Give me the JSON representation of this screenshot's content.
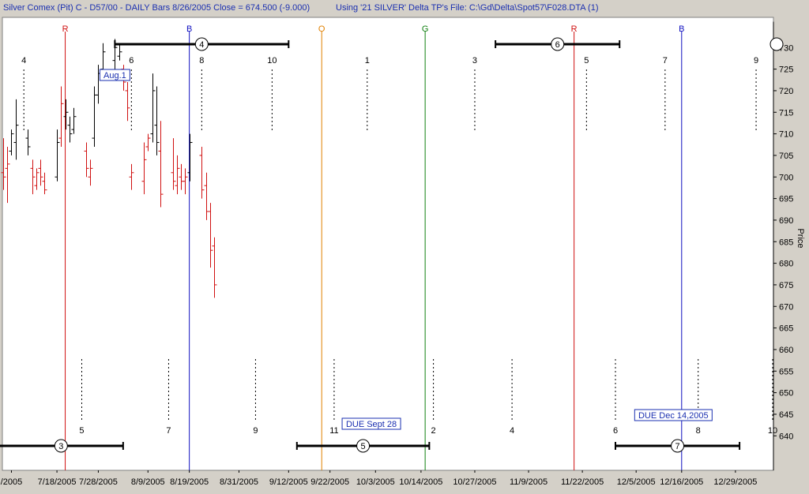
{
  "header": {
    "title": "Silver Comex (Pit) C - D57/00  - DAILY Bars  8/26/2005 Close = 674.500 (-9.000)",
    "using": "Using '21 SILVER' Delta TP's",
    "file": "File: C:\\Gd\\Delta\\Spot57\\F028.DTA (1)"
  },
  "chart_data": {
    "type": "bar",
    "subtype": "OHLC daily bars with cycle markers",
    "ylabel": "Price",
    "ylim": [
      632,
      737
    ],
    "yticks": [
      640,
      645,
      650,
      655,
      660,
      665,
      670,
      675,
      680,
      685,
      690,
      695,
      700,
      705,
      710,
      715,
      720,
      725,
      730
    ],
    "x_date_range": [
      "2005-07-05",
      "2006-01-07"
    ],
    "xticks": [
      {
        "date": "2005-07-07",
        "label": "/2005"
      },
      {
        "date": "2005-07-18",
        "label": "7/18/2005"
      },
      {
        "date": "2005-07-28",
        "label": "7/28/2005"
      },
      {
        "date": "2005-08-09",
        "label": "8/9/2005"
      },
      {
        "date": "2005-08-19",
        "label": "8/19/2005"
      },
      {
        "date": "2005-08-31",
        "label": "8/31/2005"
      },
      {
        "date": "2005-09-12",
        "label": "9/12/2005"
      },
      {
        "date": "2005-09-22",
        "label": "9/22/2005"
      },
      {
        "date": "2005-10-03",
        "label": "10/3/2005"
      },
      {
        "date": "2005-10-14",
        "label": "10/14/2005"
      },
      {
        "date": "2005-10-27",
        "label": "10/27/2005"
      },
      {
        "date": "2005-11-09",
        "label": "11/9/2005"
      },
      {
        "date": "2005-11-22",
        "label": "11/22/2005"
      },
      {
        "date": "2005-12-05",
        "label": "12/5/2005"
      },
      {
        "date": "2005-12-16",
        "label": "12/16/2005"
      },
      {
        "date": "2005-12-29",
        "label": "12/29/2005"
      }
    ],
    "colors": {
      "up": "#000000",
      "down": "#d01010",
      "R": "#d01010",
      "B": "#1010c0",
      "O": "#e08000",
      "G": "#108010",
      "label_box": "#1a2fb0"
    },
    "bars": [
      {
        "date": "2005-07-05",
        "h": 709,
        "l": 697,
        "o": 701,
        "c": 700,
        "color": "down"
      },
      {
        "date": "2005-07-06",
        "h": 707,
        "l": 694,
        "o": 702,
        "c": 703,
        "color": "down"
      },
      {
        "date": "2005-07-07",
        "h": 711,
        "l": 705,
        "o": 706,
        "c": 710,
        "color": "up"
      },
      {
        "date": "2005-07-08",
        "h": 718,
        "l": 704,
        "o": 708,
        "c": 712,
        "color": "up"
      },
      {
        "date": "2005-07-11",
        "h": 711,
        "l": 705,
        "o": 709,
        "c": 707,
        "color": "up"
      },
      {
        "date": "2005-07-12",
        "h": 704,
        "l": 696,
        "o": 702,
        "c": 700,
        "color": "down"
      },
      {
        "date": "2005-07-13",
        "h": 702,
        "l": 697,
        "o": 698,
        "c": 701,
        "color": "down"
      },
      {
        "date": "2005-07-14",
        "h": 704,
        "l": 698,
        "o": 702,
        "c": 700,
        "color": "down"
      },
      {
        "date": "2005-07-15",
        "h": 701,
        "l": 696,
        "o": 699,
        "c": 697,
        "color": "down"
      },
      {
        "date": "2005-07-18",
        "h": 711,
        "l": 699,
        "o": 700,
        "c": 708,
        "color": "up"
      },
      {
        "date": "2005-07-19",
        "h": 721,
        "l": 707,
        "o": 709,
        "c": 717,
        "color": "down"
      },
      {
        "date": "2005-07-20",
        "h": 718,
        "l": 711,
        "o": 714,
        "c": 715,
        "color": "up"
      },
      {
        "date": "2005-07-21",
        "h": 714,
        "l": 708,
        "o": 712,
        "c": 710,
        "color": "up"
      },
      {
        "date": "2005-07-22",
        "h": 716,
        "l": 710,
        "o": 711,
        "c": 714,
        "color": "up"
      },
      {
        "date": "2005-07-25",
        "h": 708,
        "l": 700,
        "o": 706,
        "c": 702,
        "color": "down"
      },
      {
        "date": "2005-07-26",
        "h": 704,
        "l": 698,
        "o": 700,
        "c": 702,
        "color": "down"
      },
      {
        "date": "2005-07-27",
        "h": 721,
        "l": 707,
        "o": 709,
        "c": 719,
        "color": "up"
      },
      {
        "date": "2005-07-28",
        "h": 726,
        "l": 717,
        "o": 719,
        "c": 724,
        "color": "up"
      },
      {
        "date": "2005-07-29",
        "h": 731,
        "l": 723,
        "o": 725,
        "c": 729,
        "color": "up"
      },
      {
        "date": "2005-08-01",
        "h": 732,
        "l": 724,
        "o": 727,
        "c": 730,
        "color": "up"
      },
      {
        "date": "2005-08-02",
        "h": 731,
        "l": 727,
        "o": 728,
        "c": 729,
        "color": "up"
      },
      {
        "date": "2005-08-03",
        "h": 726,
        "l": 720,
        "o": 725,
        "c": 722,
        "color": "down"
      },
      {
        "date": "2005-08-04",
        "h": 722,
        "l": 713,
        "o": 720,
        "c": 716,
        "color": "down"
      },
      {
        "date": "2005-08-05",
        "h": 703,
        "l": 697,
        "o": 700,
        "c": 701,
        "color": "down"
      },
      {
        "date": "2005-08-08",
        "h": 708,
        "l": 696,
        "o": 699,
        "c": 704,
        "color": "down"
      },
      {
        "date": "2005-08-09",
        "h": 710,
        "l": 706,
        "o": 707,
        "c": 709,
        "color": "down"
      },
      {
        "date": "2005-08-10",
        "h": 724,
        "l": 708,
        "o": 710,
        "c": 720,
        "color": "up"
      },
      {
        "date": "2005-08-11",
        "h": 721,
        "l": 705,
        "o": 712,
        "c": 708,
        "color": "up"
      },
      {
        "date": "2005-08-12",
        "h": 713,
        "l": 693,
        "o": 706,
        "c": 696,
        "color": "down"
      },
      {
        "date": "2005-08-15",
        "h": 709,
        "l": 697,
        "o": 701,
        "c": 699,
        "color": "down"
      },
      {
        "date": "2005-08-16",
        "h": 705,
        "l": 696,
        "o": 698,
        "c": 702,
        "color": "down"
      },
      {
        "date": "2005-08-17",
        "h": 703,
        "l": 697,
        "o": 700,
        "c": 699,
        "color": "down"
      },
      {
        "date": "2005-08-18",
        "h": 702,
        "l": 696,
        "o": 699,
        "c": 700,
        "color": "down"
      },
      {
        "date": "2005-08-19",
        "h": 710,
        "l": 699,
        "o": 701,
        "c": 708,
        "color": "up"
      },
      {
        "date": "2005-08-22",
        "h": 707,
        "l": 695,
        "o": 705,
        "c": 697,
        "color": "down"
      },
      {
        "date": "2005-08-23",
        "h": 701,
        "l": 690,
        "o": 698,
        "c": 692,
        "color": "down"
      },
      {
        "date": "2005-08-24",
        "h": 694,
        "l": 679,
        "o": 692,
        "c": 683,
        "color": "down"
      },
      {
        "date": "2005-08-25",
        "h": 686,
        "l": 672,
        "o": 684,
        "c": 675,
        "color": "down"
      }
    ],
    "vertical_lines": [
      {
        "label": "R",
        "date": "2005-07-20",
        "color": "R"
      },
      {
        "label": "B",
        "date": "2005-08-19",
        "color": "B"
      },
      {
        "label": "O",
        "date": "2005-09-20",
        "color": "O"
      },
      {
        "label": "G",
        "date": "2005-10-15",
        "color": "G"
      },
      {
        "label": "R",
        "date": "2005-11-20",
        "color": "R"
      },
      {
        "label": "B",
        "date": "2005-12-16",
        "color": "B"
      }
    ],
    "top_numbers": [
      {
        "label": "4",
        "date": "2005-07-10"
      },
      {
        "label": "6",
        "date": "2005-08-05"
      },
      {
        "label": "8",
        "date": "2005-08-22"
      },
      {
        "label": "10",
        "date": "2005-09-08"
      },
      {
        "label": "1",
        "date": "2005-10-01"
      },
      {
        "label": "3",
        "date": "2005-10-27"
      },
      {
        "label": "5",
        "date": "2005-11-23"
      },
      {
        "label": "7",
        "date": "2005-12-12"
      },
      {
        "label": "9",
        "date": "2006-01-03"
      }
    ],
    "bottom_numbers": [
      {
        "label": "5",
        "date": "2005-07-24"
      },
      {
        "label": "7",
        "date": "2005-08-14"
      },
      {
        "label": "9",
        "date": "2005-09-04"
      },
      {
        "label": "11",
        "date": "2005-09-23"
      },
      {
        "label": "2",
        "date": "2005-10-17"
      },
      {
        "label": "4",
        "date": "2005-11-05"
      },
      {
        "label": "6",
        "date": "2005-11-30"
      },
      {
        "label": "8",
        "date": "2005-12-20"
      },
      {
        "label": "10",
        "date": "2006-01-07"
      }
    ],
    "top_ranges": [
      {
        "label": "4",
        "start": "2005-08-01",
        "end": "2005-09-12"
      },
      {
        "label": "6",
        "start": "2005-11-01",
        "end": "2005-12-01"
      }
    ],
    "bottom_ranges": [
      {
        "label": "3",
        "start": "2005-07-04",
        "end": "2005-08-03"
      },
      {
        "label": "5",
        "start": "2005-09-14",
        "end": "2005-10-16"
      },
      {
        "label": "7",
        "start": "2005-11-30",
        "end": "2005-12-30"
      }
    ],
    "annotations": [
      {
        "text": "Aug.1",
        "date": "2005-08-01",
        "anchor": "top"
      },
      {
        "text": "DUE Sept 28",
        "date": "2005-10-02",
        "anchor": "bottom"
      },
      {
        "text": "DUE Dec 14,2005",
        "date": "2005-12-14",
        "anchor": "bottom"
      }
    ]
  }
}
